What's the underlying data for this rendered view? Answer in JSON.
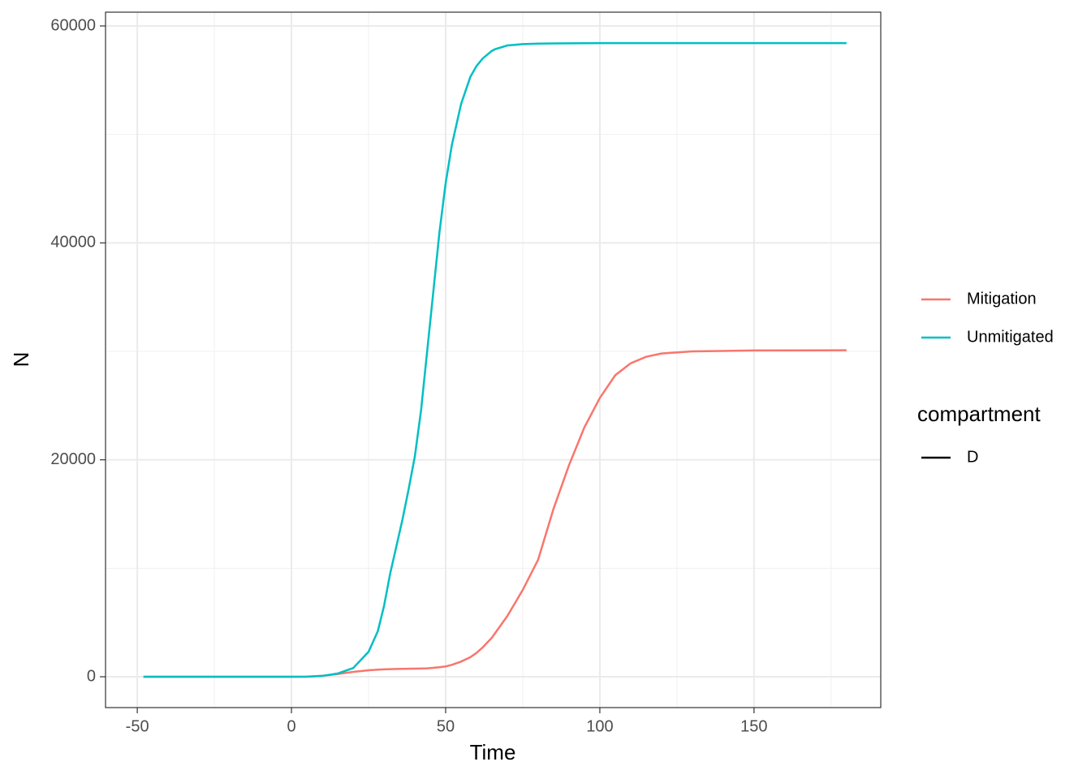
{
  "chart_data": {
    "type": "line",
    "xlabel": "Time",
    "ylabel": "N",
    "x": [
      -48,
      0,
      5,
      10,
      15,
      20,
      25,
      28,
      30,
      32,
      34,
      36,
      38,
      40,
      42,
      44,
      46,
      48,
      50,
      52,
      55,
      58,
      60,
      62,
      65,
      66,
      70,
      75,
      80,
      85,
      90,
      95,
      100,
      105,
      110,
      115,
      120,
      130,
      150,
      180
    ],
    "series": [
      {
        "name": "Mitigation",
        "color": "#F8766D",
        "values": [
          0,
          0,
          10,
          80,
          250,
          450,
          600,
          650,
          680,
          700,
          720,
          730,
          740,
          750,
          760,
          780,
          820,
          880,
          950,
          1100,
          1400,
          1800,
          2200,
          2700,
          3600,
          4000,
          5600,
          8000,
          10800,
          15500,
          19500,
          23000,
          25700,
          27800,
          28900,
          29500,
          29800,
          30000,
          30080,
          30100
        ]
      },
      {
        "name": "Unmitigated",
        "color": "#00BFC4",
        "values": [
          0,
          0,
          10,
          80,
          300,
          800,
          2300,
          4200,
          6500,
          9500,
          12000,
          14500,
          17300,
          20300,
          24500,
          30000,
          35500,
          41000,
          45500,
          49000,
          52800,
          55300,
          56300,
          57000,
          57700,
          57850,
          58200,
          58320,
          58370,
          58390,
          58400,
          58410,
          58420,
          58420,
          58420,
          58420,
          58420,
          58420,
          58420,
          58420
        ]
      }
    ],
    "legend_title": "compartment",
    "linetype_legend": [
      {
        "name": "D",
        "color": "#000000"
      }
    ],
    "xlim": [
      -60.3,
      191.1
    ],
    "xticks": [
      -50,
      0,
      50,
      100,
      150
    ],
    "x_minor_ticks": [
      -25,
      25,
      75,
      125,
      175
    ],
    "ylim": [
      -2843,
      61270
    ],
    "yticks": [
      0,
      20000,
      40000,
      60000
    ],
    "y_minor_ticks": [
      10000,
      30000,
      50000
    ],
    "grid": true
  }
}
